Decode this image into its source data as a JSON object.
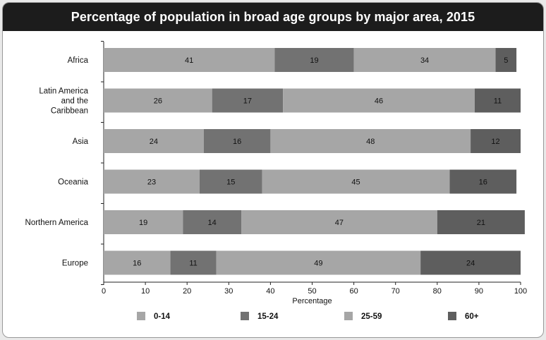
{
  "chart_data": {
    "type": "bar",
    "orientation": "horizontal",
    "stacked": true,
    "title": "Percentage of population in broad age groups by major area, 2015",
    "xlabel": "Percentage",
    "ylabel": "",
    "xlim": [
      0,
      100
    ],
    "xticks": [
      0,
      10,
      20,
      30,
      40,
      50,
      60,
      70,
      80,
      90,
      100
    ],
    "categories": [
      [
        "Africa"
      ],
      [
        "Latin America",
        "and the",
        "Caribbean"
      ],
      [
        "Asia"
      ],
      [
        "Oceania"
      ],
      [
        "Northern America"
      ],
      [
        "Europe"
      ]
    ],
    "series": [
      {
        "name": "0-14",
        "color": "#a6a6a6",
        "values": [
          41,
          26,
          24,
          23,
          19,
          16
        ]
      },
      {
        "name": "15-24",
        "color": "#727272",
        "values": [
          19,
          17,
          16,
          15,
          14,
          11
        ]
      },
      {
        "name": "25-59",
        "color": "#a6a6a6",
        "values": [
          34,
          46,
          48,
          45,
          47,
          49
        ]
      },
      {
        "name": "60+",
        "color": "#5e5e5e",
        "values": [
          5,
          11,
          12,
          16,
          21,
          24
        ]
      }
    ],
    "legend_position": "bottom",
    "grid": false
  }
}
